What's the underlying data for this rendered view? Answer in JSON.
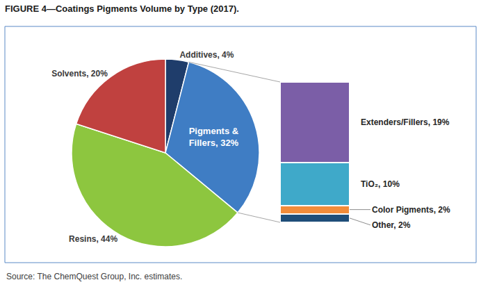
{
  "chart_data": [
    {
      "type": "pie",
      "title": "FIGURE 4—Coatings Pigments Volume by Type (2017).",
      "categories": [
        "Additives",
        "Pigments & Fillers",
        "Resins",
        "Solvents"
      ],
      "values": [
        4,
        32,
        44,
        20
      ],
      "colors": [
        "#1f3d6b",
        "#3f7dc4",
        "#8dc63f",
        "#c0413f"
      ],
      "data_labels": true,
      "value_labels": [
        "Additives, 4%",
        "Pigments & Fillers, 32%",
        "Resins, 44%",
        "Solvents, 20%"
      ],
      "annotations": [
        "Source: The ChemQuest Group, Inc. estimates."
      ]
    },
    {
      "type": "bar",
      "stacked": true,
      "categories": [
        null
      ],
      "series": [
        {
          "name": "Other",
          "color": "#1f4e79",
          "values": [
            2
          ],
          "value_labels": [
            "Other, 2%"
          ]
        },
        {
          "name": "Color Pigments",
          "color": "#f28c3a",
          "values": [
            2
          ],
          "value_labels": [
            "Color Pigments, 2%"
          ]
        },
        {
          "name": "TiO₂",
          "color": "#3fa9c9",
          "values": [
            10
          ],
          "value_labels": [
            "TiO₂, 10%"
          ]
        },
        {
          "name": "Extenders/Fillers",
          "color": "#7b5ea7",
          "values": [
            19
          ],
          "value_labels": [
            "Extenders/Fillers, 19%"
          ]
        }
      ],
      "ylim": [
        0,
        33
      ],
      "data_labels": true,
      "tick_labels": false
    }
  ]
}
